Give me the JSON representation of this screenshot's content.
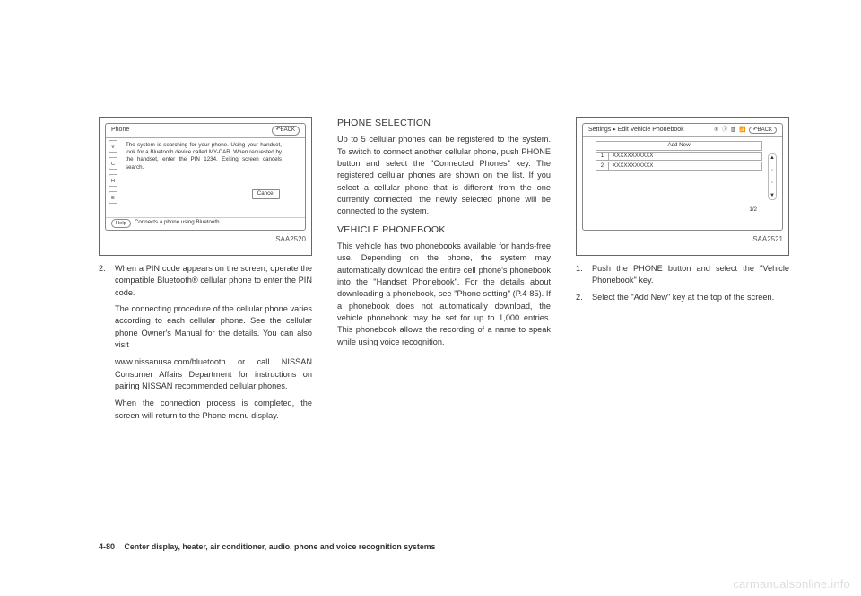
{
  "figure1": {
    "title": "Phone",
    "back": "BACK",
    "message": "The system is searching for your phone. Using your handset, look for a Bluetooth device called MY-CAR. When requested by the handset, enter the PIN 1234. Exiting screen cancels search.",
    "cancel": "Cancel",
    "helpLabel": "Help",
    "helpText": "Connects a phone using Bluetooth",
    "leftTabs": [
      "V",
      "C",
      "H",
      "E"
    ],
    "caption": "SAA2520"
  },
  "col1": {
    "step2_num": "2.",
    "step2_text": "When a PIN code appears on the screen, operate the compatible Bluetooth® cellular phone to enter the PIN code.",
    "p2": "The connecting procedure of the cellular phone varies according to each cellular phone. See the cellular phone Owner's Manual for the details. You can also visit",
    "p3": "www.nissanusa.com/bluetooth or call NISSAN Consumer Affairs Department for instructions on pairing NISSAN recommended cellular phones.",
    "p4": "When the connection process is completed, the screen will return to the Phone menu display."
  },
  "col2": {
    "h1": "PHONE SELECTION",
    "p1": "Up to 5 cellular phones can be registered to the system. To switch to connect another cellular phone, push PHONE button and select the \"Connected Phones\" key. The registered cellular phones are shown on the list. If you select a cellular phone that is different from the one currently connected, the newly selected phone will be connected to the system.",
    "h2": "VEHICLE PHONEBOOK",
    "p2": "This vehicle has two phonebooks available for hands-free use. Depending on the phone, the system may automatically download the entire cell phone's phonebook into the \"Handset Phonebook\". For the details about downloading a phonebook, see \"Phone setting\" (P.4-85). If a phonebook does not automatically download, the vehicle phonebook may be set for up to 1,000 entries. This phonebook allows the recording of a name to speak while using voice recognition."
  },
  "figure2": {
    "breadcrumb": "Settings ▸ Edit Vehicle Phonebook",
    "icons": "⑧ ⓘ ▥ 📶",
    "back": "BACK",
    "addNew": "Add New",
    "rows": [
      {
        "n": "1",
        "v": "XXXXXXXXXXX"
      },
      {
        "n": "2",
        "v": "XXXXXXXXXXX"
      }
    ],
    "pager": "1/2",
    "caption": "SAA2521"
  },
  "col3": {
    "step1_num": "1.",
    "step1_text": "Push the PHONE button and select the \"Vehicle Phonebook\" key.",
    "step2_num": "2.",
    "step2_text": "Select the \"Add New\" key at the top of the screen."
  },
  "footer": {
    "page": "4-80",
    "section": "Center display, heater, air conditioner, audio, phone and voice recognition systems"
  },
  "watermark": "carmanualsonline.info",
  "colors": {
    "text": "#333333",
    "border": "#666666",
    "watermark": "#dddddd"
  }
}
